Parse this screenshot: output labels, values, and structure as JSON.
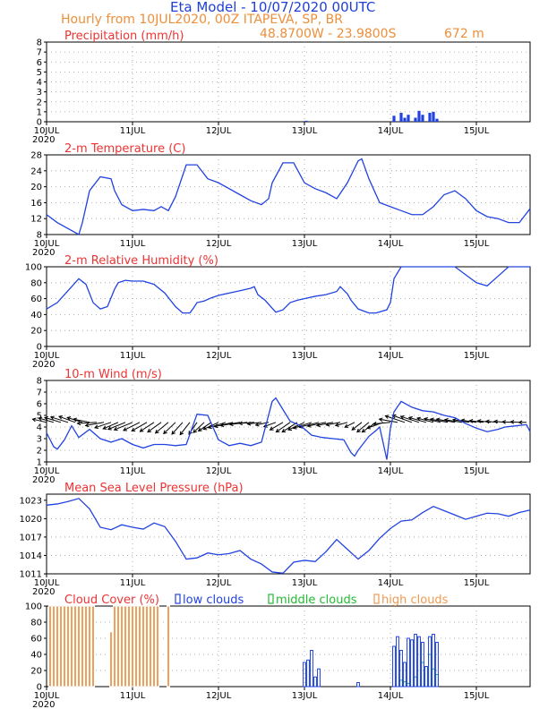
{
  "header": {
    "title": "Eta Model - 10/07/2020 00UTC",
    "subtitle": "Hourly from 10JUL2020, 00Z  ITAPEVA, SP, BR",
    "coords": "48.8700W - 23.9800S",
    "elevation": "672  m",
    "title_color": "#1f3fd6",
    "subtitle_color": "#ef8f3a"
  },
  "colors": {
    "series": "#2143e0",
    "panel_title": "#ee3333",
    "orange": "#f09a50",
    "green": "#22bb33",
    "black": "#000000"
  },
  "chart_data": [
    {
      "type": "bar",
      "title": "Precipitation (mm/h)",
      "ylim": [
        0,
        8
      ],
      "yticks": [
        "0",
        "1",
        "2",
        "3",
        "4",
        "5",
        "6",
        "7",
        "8"
      ],
      "xticks": [
        "10JUL",
        "11JUL",
        "12JUL",
        "13JUL",
        "14JUL",
        "15JUL"
      ],
      "year": "2020",
      "x": [
        72.5,
        97,
        99,
        100,
        101,
        103,
        104,
        105,
        107,
        108,
        109
      ],
      "values": [
        0.1,
        0.6,
        0.9,
        0.4,
        0.7,
        0.4,
        1.1,
        0.7,
        0.9,
        1.0,
        0.3
      ]
    },
    {
      "type": "line",
      "title": "2-m Temperature (C)",
      "ylim": [
        8,
        28
      ],
      "yticks": [
        "8",
        "12",
        "16",
        "20",
        "24",
        "28"
      ],
      "xticks": [
        "10JUL",
        "11JUL",
        "12JUL",
        "13JUL",
        "14JUL",
        "15JUL"
      ],
      "year": "2020",
      "x": [
        0,
        3,
        6,
        9,
        10,
        12,
        15,
        18,
        19,
        21,
        24,
        27,
        30,
        32,
        34,
        36,
        39,
        42,
        45,
        48,
        51,
        54,
        57,
        60,
        62,
        63,
        66,
        69,
        72,
        75,
        78,
        81,
        84,
        87,
        88,
        90,
        93,
        96,
        99,
        102,
        105,
        108,
        111,
        114,
        117,
        120,
        123,
        126,
        129,
        132,
        135
      ],
      "y": [
        13,
        11,
        9.5,
        8,
        11,
        19,
        22.5,
        22,
        19,
        15.5,
        14,
        14.3,
        14,
        15,
        14,
        17.5,
        25.5,
        25.5,
        22,
        21,
        19.5,
        18,
        16.5,
        15.5,
        17,
        21,
        26,
        26,
        21,
        19.5,
        18.5,
        17,
        21,
        26.5,
        27,
        22,
        16,
        15,
        14,
        13,
        13,
        15,
        18,
        19,
        17,
        14,
        12.5,
        12,
        11,
        11,
        14.5
      ]
    },
    {
      "type": "line",
      "title": "2-m Relative Humidity (%)",
      "ylim": [
        0,
        100
      ],
      "yticks": [
        "0",
        "20",
        "40",
        "60",
        "80",
        "100"
      ],
      "xticks": [
        "10JUL",
        "11JUL",
        "12JUL",
        "13JUL",
        "14JUL",
        "15JUL"
      ],
      "year": "2020",
      "x": [
        0,
        3,
        6,
        9,
        11,
        13,
        15,
        17,
        19,
        20,
        22,
        24,
        27,
        30,
        33,
        36,
        38,
        40,
        41,
        42,
        44,
        46,
        48,
        51,
        54,
        57,
        58,
        59,
        61,
        63,
        64,
        66,
        68,
        70,
        72,
        75,
        78,
        81,
        82,
        84,
        85,
        87,
        90,
        92,
        95,
        96,
        97,
        99,
        100,
        102,
        105,
        108,
        111,
        114,
        117,
        120,
        123,
        126,
        129,
        132,
        135
      ],
      "y": [
        47,
        55,
        70,
        85,
        78,
        55,
        47,
        50,
        72,
        80,
        83,
        82,
        82,
        78,
        67,
        50,
        42,
        42,
        48,
        55,
        57,
        61,
        64,
        67,
        70,
        73,
        75,
        65,
        58,
        48,
        43,
        46,
        55,
        58,
        60,
        63,
        65,
        69,
        75,
        66,
        58,
        47,
        42,
        42,
        46,
        55,
        85,
        100,
        100,
        100,
        100,
        100,
        100,
        100,
        90,
        80,
        76,
        88,
        100,
        100,
        100
      ]
    },
    {
      "type": "line",
      "title": "10-m Wind (m/s)",
      "ylim": [
        1,
        8
      ],
      "yticks": [
        "1",
        "2",
        "3",
        "4",
        "5",
        "6",
        "7",
        "8"
      ],
      "xticks": [
        "10JUL",
        "11JUL",
        "12JUL",
        "13JUL",
        "14JUL",
        "15JUL"
      ],
      "year": "2020",
      "x": [
        0,
        2,
        3,
        5,
        7,
        9,
        12,
        15,
        18,
        21,
        24,
        27,
        30,
        33,
        36,
        39,
        42,
        45,
        48,
        51,
        54,
        57,
        60,
        63,
        64,
        66,
        68,
        71,
        74,
        77,
        80,
        83,
        85,
        86,
        87,
        90,
        92,
        93,
        95,
        96,
        97,
        99,
        102,
        105,
        108,
        111,
        114,
        117,
        120,
        123,
        126,
        128,
        131,
        134,
        135
      ],
      "y": [
        3.5,
        2.3,
        2.1,
        2.9,
        4.1,
        3.1,
        3.8,
        3.0,
        2.7,
        3.0,
        2.5,
        2.2,
        2.5,
        2.5,
        2.4,
        2.5,
        5.1,
        5.0,
        2.9,
        2.4,
        2.6,
        2.4,
        2.7,
        6.2,
        6.5,
        5.5,
        4.5,
        4.1,
        3.3,
        3.1,
        3.0,
        2.9,
        1.8,
        1.5,
        2.0,
        3.2,
        3.7,
        4.0,
        1.2,
        3.9,
        5.3,
        6.2,
        5.7,
        5.4,
        5.3,
        5.0,
        4.8,
        4.3,
        3.9,
        3.6,
        3.8,
        4.0,
        4.1,
        4.2,
        3.6
      ],
      "barbs": {
        "x": [
          0,
          2,
          4,
          6,
          8,
          10,
          12,
          14,
          16,
          18,
          20,
          22,
          24,
          26,
          28,
          30,
          32,
          34,
          36,
          38,
          40,
          42,
          44,
          46,
          48,
          50,
          52,
          54,
          56,
          58,
          60,
          62,
          64,
          66,
          68,
          70,
          72,
          74,
          76,
          78,
          80,
          82,
          84,
          86,
          88,
          90,
          92,
          94,
          96,
          98,
          100,
          102,
          104,
          106,
          108,
          110,
          112,
          114,
          116,
          118,
          120,
          122,
          124,
          126,
          128,
          130,
          132,
          134
        ],
        "u": [
          -2.6,
          -2.8,
          -3.0,
          -3.2,
          -3.0,
          -2.8,
          -3.0,
          -3.6,
          -3.4,
          -3.0,
          -2.8,
          -3.2,
          -3.4,
          -3.0,
          -2.8,
          -2.6,
          -2.5,
          -2.4,
          -2.2,
          -2.0,
          -1.8,
          -1.5,
          -2.0,
          -2.4,
          -2.8,
          -3.2,
          -3.4,
          -3.6,
          -3.2,
          -2.8,
          -2.6,
          -2.4,
          -2.2,
          -2.4,
          -2.6,
          -2.8,
          -3.0,
          -3.4,
          -3.6,
          -3.4,
          -3.0,
          -2.6,
          -2.2,
          -1.8,
          -1.8,
          -2.2,
          -2.6,
          -3.0,
          -3.2,
          -3.4,
          -3.6,
          -3.6,
          -3.4,
          -3.2,
          -3.0,
          -3.0,
          -3.2,
          -3.4,
          -3.2,
          -3.0,
          -2.8,
          -2.6,
          -2.4,
          -2.2,
          -2.0,
          -1.8,
          -1.6,
          -1.4
        ],
        "v": [
          0.6,
          0.8,
          0.9,
          1.0,
          1.1,
          0.9,
          0.6,
          -0.2,
          -0.6,
          -1.0,
          -1.2,
          -1.3,
          -1.4,
          -1.5,
          -1.6,
          -1.7,
          -1.8,
          -2.0,
          -2.1,
          -2.2,
          -2.3,
          -2.2,
          -1.9,
          -1.6,
          -1.3,
          -1.0,
          -0.8,
          -0.6,
          -0.4,
          -0.2,
          -0.3,
          -0.5,
          -0.8,
          -1.4,
          -1.8,
          -1.8,
          -1.4,
          -1.1,
          -0.9,
          -0.7,
          -0.6,
          -0.5,
          -0.6,
          -0.9,
          -1.4,
          -1.8,
          -1.8,
          -1.1,
          -0.3,
          0.6,
          1.2,
          1.3,
          1.1,
          0.9,
          0.8,
          0.7,
          0.6,
          0.6,
          0.5,
          0.5,
          0.4,
          0.3,
          0.3,
          0.2,
          0.2,
          0.1,
          0.1,
          0.0
        ]
      }
    },
    {
      "type": "line",
      "title": "Mean Sea Level Pressure (hPa)",
      "ylim": [
        1011,
        1024
      ],
      "yticks": [
        "1011",
        "1014",
        "1017",
        "1020",
        "1023"
      ],
      "xticks": [
        "10JUL",
        "11JUL",
        "12JUL",
        "13JUL",
        "14JUL",
        "15JUL"
      ],
      "year": "2020",
      "x": [
        0,
        3,
        6,
        9,
        12,
        15,
        18,
        21,
        24,
        27,
        30,
        33,
        36,
        39,
        42,
        45,
        48,
        51,
        54,
        57,
        60,
        63,
        66,
        69,
        72,
        75,
        78,
        81,
        84,
        87,
        90,
        93,
        96,
        99,
        102,
        105,
        108,
        111,
        114,
        117,
        120,
        123,
        126,
        129,
        132,
        135
      ],
      "y": [
        1022.2,
        1022.4,
        1022.8,
        1023.3,
        1021.6,
        1018.6,
        1018.2,
        1019,
        1018.6,
        1018.3,
        1019.3,
        1018.7,
        1016.3,
        1013.4,
        1013.6,
        1014.4,
        1014.1,
        1014.3,
        1014.8,
        1013.4,
        1012.6,
        1011.3,
        1011.1,
        1012.9,
        1013.2,
        1013.0,
        1014.6,
        1016.6,
        1015.0,
        1013.4,
        1014.8,
        1016.8,
        1018.4,
        1019.6,
        1019.8,
        1021.0,
        1022.0,
        1021.3,
        1020.6,
        1019.9,
        1020.4,
        1020.9,
        1020.8,
        1020.4,
        1021.0,
        1021.4
      ]
    },
    {
      "type": "bar",
      "title": "Cloud Cover (%)",
      "legend": [
        "low clouds",
        "middle clouds",
        "high clouds"
      ],
      "ylim": [
        0,
        100
      ],
      "yticks": [
        "0",
        "20",
        "40",
        "60",
        "80",
        "100"
      ],
      "xticks": [
        "10JUL",
        "11JUL",
        "12JUL",
        "13JUL",
        "14JUL",
        "15JUL"
      ],
      "year": "2020",
      "series": [
        {
          "name": "high clouds",
          "x": [
            1,
            2,
            3,
            4,
            5,
            6,
            7,
            8,
            9,
            10,
            11,
            12,
            13,
            18,
            19,
            20,
            21,
            22,
            23,
            24,
            25,
            26,
            27,
            28,
            29,
            30,
            31,
            34
          ],
          "values": [
            100,
            100,
            100,
            100,
            100,
            100,
            100,
            100,
            100,
            100,
            100,
            100,
            100,
            68,
            100,
            100,
            100,
            100,
            100,
            100,
            100,
            100,
            100,
            100,
            100,
            100,
            100,
            100
          ]
        },
        {
          "name": "middle clouds",
          "x": [
            99,
            100,
            101,
            103,
            105,
            107,
            108,
            109
          ],
          "values": [
            8,
            6,
            4,
            12,
            30,
            40,
            22,
            15
          ]
        },
        {
          "name": "low clouds",
          "x": [
            72,
            73,
            74,
            75,
            76,
            87,
            97,
            98,
            99,
            100,
            101,
            102,
            103,
            104,
            105,
            106,
            107,
            108,
            109
          ],
          "values": [
            30,
            33,
            45,
            12,
            22,
            5,
            50,
            62,
            45,
            30,
            60,
            58,
            65,
            62,
            55,
            25,
            62,
            65,
            55
          ]
        }
      ]
    }
  ]
}
